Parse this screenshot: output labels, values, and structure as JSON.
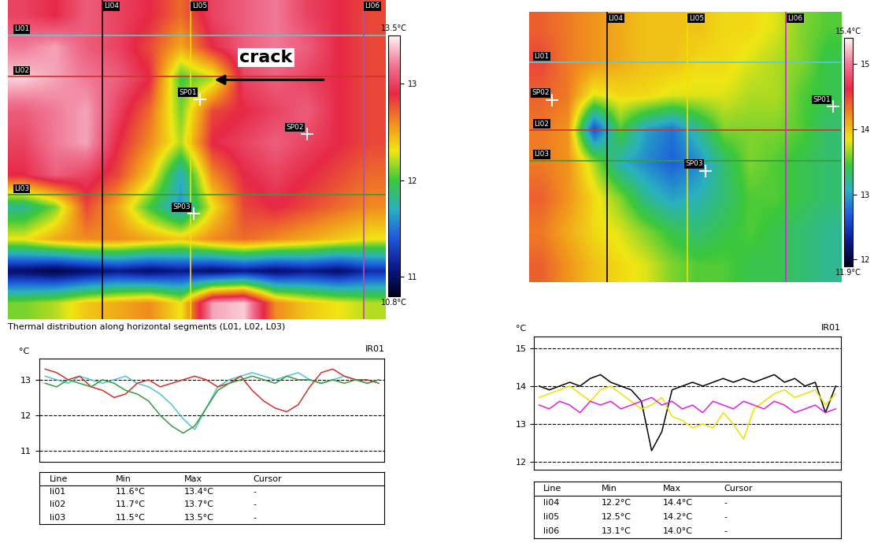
{
  "chart_data": [
    {
      "type": "heatmap",
      "cells": [
        [
          13.0,
          12.9,
          13.1,
          13.0,
          12.9,
          12.7,
          13.0,
          13.1,
          13.2,
          13.0,
          12.9,
          12.8
        ],
        [
          13.2,
          13.3,
          13.1,
          13.0,
          12.8,
          12.5,
          12.9,
          13.1,
          13.2,
          13.1,
          12.9,
          12.8
        ],
        [
          13.4,
          13.3,
          13.2,
          13.1,
          12.9,
          12.0,
          12.2,
          13.0,
          13.1,
          13.0,
          12.9,
          12.8
        ],
        [
          13.1,
          13.2,
          13.3,
          13.0,
          12.7,
          12.1,
          12.8,
          12.9,
          13.0,
          13.1,
          12.9,
          12.8
        ],
        [
          13.0,
          13.2,
          13.3,
          12.9,
          12.6,
          12.2,
          12.9,
          13.0,
          13.1,
          13.0,
          12.9,
          12.8
        ],
        [
          12.9,
          13.1,
          13.0,
          12.8,
          12.4,
          11.7,
          12.6,
          12.9,
          13.0,
          12.9,
          12.8,
          12.7
        ],
        [
          11.8,
          12.1,
          12.8,
          12.5,
          12.0,
          11.6,
          12.3,
          12.8,
          12.9,
          12.8,
          12.7,
          12.6
        ],
        [
          12.3,
          12.5,
          12.6,
          12.6,
          12.5,
          12.4,
          12.6,
          12.7,
          12.6,
          12.5,
          12.4,
          12.3
        ],
        [
          11.0,
          10.9,
          11.0,
          11.1,
          11.0,
          11.1,
          11.0,
          11.1,
          11.0,
          11.1,
          11.0,
          11.2
        ],
        [
          12.1,
          12.2,
          12.4,
          12.5,
          12.6,
          12.3,
          13.3,
          13.4,
          12.6,
          12.4,
          12.3,
          12.2
        ]
      ],
      "color_range": [
        10.8,
        13.5
      ],
      "color_ticks": [
        11,
        12,
        13
      ],
      "color_range_labels": [
        "13.5°C",
        "10.8°C"
      ],
      "lines": [
        {
          "name": "LI01",
          "orientation": "horizontal",
          "position": 0.6,
          "color": "#5fc8d0"
        },
        {
          "name": "LI02",
          "orientation": "horizontal",
          "position": 1.9,
          "color": "#d0312d"
        },
        {
          "name": "LI03",
          "orientation": "horizontal",
          "position": 5.6,
          "color": "#3a9a3a"
        },
        {
          "name": "LI04",
          "orientation": "vertical",
          "position": 2.5,
          "color": "#000000"
        },
        {
          "name": "LI05",
          "orientation": "vertical",
          "position": 5.3,
          "color": "#f0e000"
        },
        {
          "name": "LI06",
          "orientation": "vertical",
          "position": 10.8,
          "color": "#b050b0"
        }
      ],
      "spots": [
        {
          "name": "SP01",
          "x": 5.6,
          "y": 2.6
        },
        {
          "name": "SP02",
          "x": 9.0,
          "y": 3.7
        },
        {
          "name": "SP03",
          "x": 5.4,
          "y": 6.2
        }
      ],
      "annotations": [
        {
          "text": "crack",
          "x": 7.7,
          "y": 1.3,
          "arrow_from": [
            9.6,
            2.0
          ],
          "arrow_to": [
            6.0,
            2.0
          ]
        }
      ],
      "caption": "Thermal distribution along horizontal segments (L01, L02, L03)"
    },
    {
      "type": "line",
      "title": "IR01",
      "ylabel": "°C",
      "ylim": [
        10.7,
        13.6
      ],
      "yticks": [
        11,
        12,
        13
      ],
      "grid": true,
      "tick_labels": "y",
      "series": [
        {
          "color": "#4fc3d9",
          "values": [
            13.1,
            13.0,
            12.9,
            13.1,
            13.0,
            12.9,
            13.0,
            13.1,
            12.9,
            12.8,
            12.6,
            12.3,
            11.9,
            11.6,
            12.2,
            12.8,
            13.0,
            13.1,
            13.2,
            13.1,
            13.0,
            13.1,
            13.2,
            13.0,
            12.9,
            13.0,
            13.1,
            13.0,
            12.9,
            13.0
          ]
        },
        {
          "color": "#d0312d",
          "values": [
            13.3,
            13.2,
            13.0,
            13.1,
            12.8,
            12.7,
            12.5,
            12.6,
            12.9,
            13.0,
            12.8,
            12.9,
            13.0,
            13.1,
            13.0,
            12.8,
            12.9,
            13.1,
            12.7,
            12.4,
            12.2,
            12.1,
            12.3,
            12.8,
            13.2,
            13.3,
            13.1,
            13.0,
            13.0,
            12.9
          ]
        },
        {
          "color": "#3a9a3a",
          "values": [
            12.9,
            12.8,
            13.0,
            12.9,
            12.8,
            13.0,
            12.9,
            12.7,
            12.6,
            12.4,
            12.0,
            11.7,
            11.5,
            11.7,
            12.2,
            12.7,
            12.9,
            13.0,
            13.1,
            13.0,
            12.9,
            13.1,
            13.0,
            13.0,
            12.9,
            13.0,
            12.9,
            13.0,
            12.9,
            13.0
          ]
        }
      ],
      "table": {
        "columns": [
          "Line",
          "Min",
          "Max",
          "Cursor"
        ],
        "rows": [
          [
            "li01",
            "11.6°C",
            "13.4°C",
            "-"
          ],
          [
            "li02",
            "11.7°C",
            "13.7°C",
            "-"
          ],
          [
            "li03",
            "11.5°C",
            "13.5°C",
            "-"
          ]
        ]
      }
    },
    {
      "type": "heatmap",
      "cells": [
        [
          14.4,
          14.3,
          14.2,
          14.1,
          14.0,
          14.0,
          14.0,
          13.9,
          13.9,
          13.8,
          13.6,
          13.5
        ],
        [
          14.5,
          14.3,
          14.2,
          14.1,
          14.0,
          14.0,
          13.9,
          13.9,
          13.8,
          13.7,
          13.6,
          13.4
        ],
        [
          14.4,
          14.3,
          13.8,
          13.9,
          13.9,
          13.8,
          13.8,
          13.8,
          13.7,
          13.7,
          13.5,
          13.4
        ],
        [
          14.3,
          14.2,
          12.6,
          13.5,
          13.0,
          12.8,
          13.2,
          13.6,
          13.6,
          13.6,
          13.5,
          13.3
        ],
        [
          14.3,
          14.2,
          13.7,
          13.1,
          12.9,
          12.7,
          12.9,
          13.3,
          13.6,
          13.5,
          13.4,
          13.3
        ],
        [
          14.4,
          14.2,
          13.9,
          13.6,
          13.2,
          13.0,
          13.1,
          13.3,
          13.5,
          13.5,
          13.4,
          13.3
        ],
        [
          14.3,
          14.1,
          13.9,
          13.8,
          13.6,
          13.4,
          13.3,
          13.4,
          13.5,
          13.4,
          13.3,
          13.2
        ],
        [
          14.4,
          14.2,
          14.0,
          13.9,
          13.8,
          13.6,
          13.5,
          13.5,
          13.4,
          13.4,
          13.3,
          13.2
        ]
      ],
      "color_range": [
        11.9,
        15.4
      ],
      "color_ticks": [
        12,
        13,
        14,
        15
      ],
      "color_range_labels": [
        "15.4°C",
        "11.9°C"
      ],
      "lines": [
        {
          "name": "LI01",
          "orientation": "horizontal",
          "position": 1.0,
          "color": "#5fc8d0"
        },
        {
          "name": "LI02",
          "orientation": "horizontal",
          "position": 3.0,
          "color": "#d0312d"
        },
        {
          "name": "LI03",
          "orientation": "horizontal",
          "position": 3.9,
          "color": "#3a9a3a"
        },
        {
          "name": "LI04",
          "orientation": "vertical",
          "position": 2.5,
          "color": "#000000"
        },
        {
          "name": "LI05",
          "orientation": "vertical",
          "position": 5.6,
          "color": "#f0e000"
        },
        {
          "name": "LI06",
          "orientation": "vertical",
          "position": 9.4,
          "color": "#e020e0"
        }
      ],
      "spots": [
        {
          "name": "SP01",
          "x": 11.2,
          "y": 2.3
        },
        {
          "name": "SP02",
          "x": 0.4,
          "y": 2.1
        },
        {
          "name": "SP03",
          "x": 6.3,
          "y": 4.2
        }
      ]
    },
    {
      "type": "line",
      "title": "IR01",
      "ylabel": "°C",
      "ylim": [
        11.8,
        15.3
      ],
      "yticks": [
        12,
        13,
        14,
        15
      ],
      "grid": true,
      "tick_labels": "y",
      "series": [
        {
          "color": "#000000",
          "values": [
            14.0,
            13.9,
            14.0,
            14.1,
            14.0,
            14.2,
            14.3,
            14.1,
            14.0,
            13.9,
            13.6,
            12.3,
            12.8,
            13.9,
            14.0,
            14.1,
            14.0,
            14.1,
            14.2,
            14.1,
            14.2,
            14.1,
            14.2,
            14.3,
            14.1,
            14.2,
            14.0,
            14.1,
            13.3,
            14.0
          ]
        },
        {
          "color": "#f0e000",
          "values": [
            13.7,
            13.8,
            13.9,
            14.0,
            13.8,
            13.6,
            13.9,
            14.0,
            13.8,
            13.6,
            13.4,
            13.5,
            13.7,
            13.2,
            13.1,
            12.9,
            13.0,
            12.9,
            13.3,
            13.0,
            12.6,
            13.4,
            13.6,
            13.8,
            13.9,
            13.7,
            13.8,
            13.9,
            13.5,
            13.8
          ]
        },
        {
          "color": "#e020e0",
          "values": [
            13.5,
            13.4,
            13.6,
            13.5,
            13.3,
            13.6,
            13.5,
            13.6,
            13.4,
            13.5,
            13.6,
            13.7,
            13.5,
            13.6,
            13.4,
            13.5,
            13.3,
            13.6,
            13.5,
            13.4,
            13.6,
            13.5,
            13.4,
            13.6,
            13.5,
            13.3,
            13.4,
            13.5,
            13.3,
            13.4
          ]
        }
      ],
      "table": {
        "columns": [
          "Line",
          "Min",
          "Max",
          "Cursor"
        ],
        "rows": [
          [
            "li04",
            "12.2°C",
            "14.4°C",
            "-"
          ],
          [
            "li05",
            "12.5°C",
            "14.2°C",
            "-"
          ],
          [
            "li06",
            "13.1°C",
            "14.0°C",
            "-"
          ]
        ]
      }
    }
  ]
}
